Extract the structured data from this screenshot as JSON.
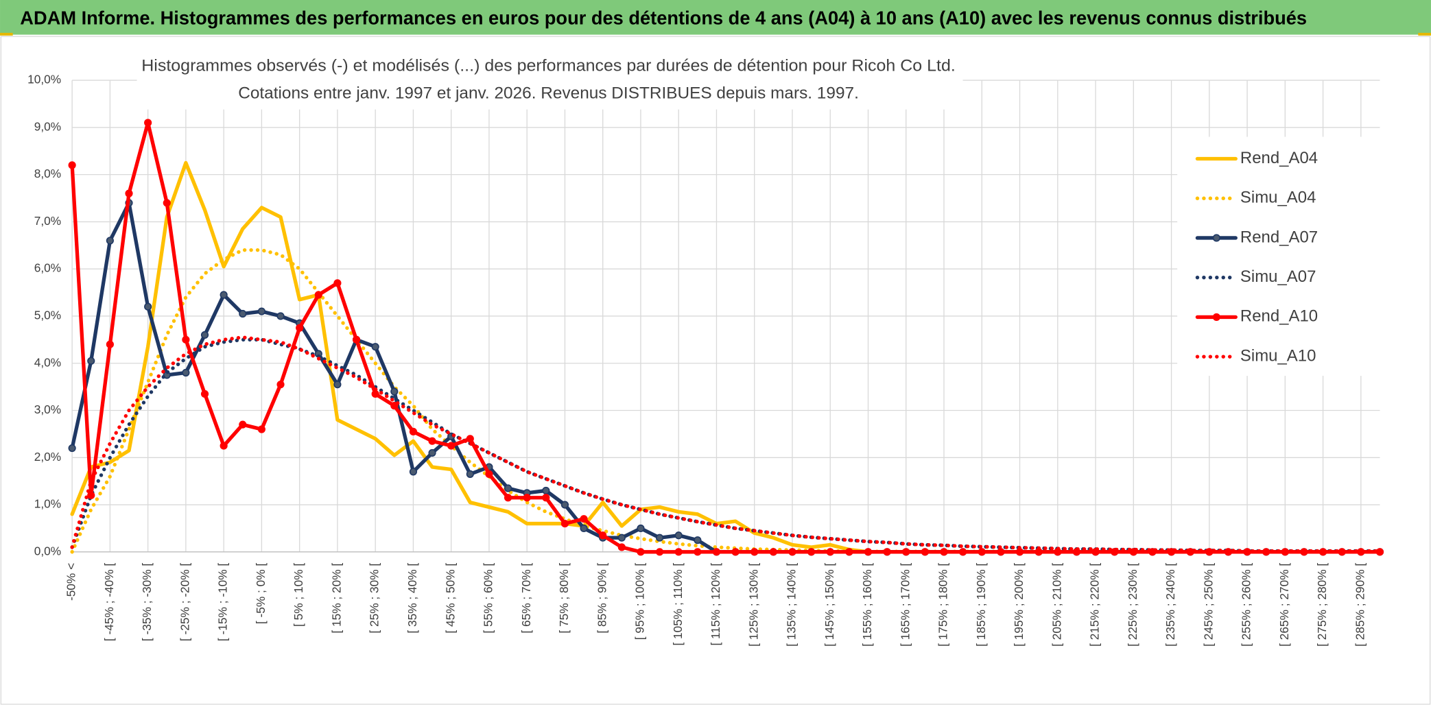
{
  "header": {
    "title": "ADAM Informe. Histogrammes des performances en euros pour des détentions de 4 ans (A04) à 10 ans (A10) avec les revenus connus distribués"
  },
  "chart_data": {
    "type": "line",
    "title": "Histogrammes observés (-) et modélisés (...) des performances par durées de détention pour Ricoh Co Ltd.",
    "subtitle": "Cotations entre janv. 1997 et janv. 2026. Revenus DISTRIBUES depuis mars. 1997.",
    "categories": [
      "-50% <",
      null,
      "[ -45% ; -40% [",
      null,
      "[ -35% ; -30% [",
      null,
      "[ -25% ; -20% [",
      null,
      "[ -15% ; -10% [",
      null,
      "[ -5% ; 0% [",
      null,
      "[ 5% ; 10% [",
      null,
      "[ 15% ; 20% [",
      null,
      "[ 25% ; 30% [",
      null,
      "[ 35% ; 40% [",
      null,
      "[ 45% ; 50% [",
      null,
      "[ 55% ; 60% [",
      null,
      "[ 65% ; 70% [",
      null,
      "[ 75% ; 80% [",
      null,
      "[ 85% ; 90% [",
      null,
      "[ 95% ; 100% [",
      null,
      "[ 105% ; 110% [",
      null,
      "[ 115% ; 120% [",
      null,
      "[ 125% ; 130% [",
      null,
      "[ 135% ; 140% [",
      null,
      "[ 145% ; 150% [",
      null,
      "[ 155% ; 160% [",
      null,
      "[ 165% ; 170% [",
      null,
      "[ 175% ; 180% [",
      null,
      "[ 185% ; 190% [",
      null,
      "[ 195% ; 200% [",
      null,
      "[ 205% ; 210% [",
      null,
      "[ 215% ; 220% [",
      null,
      "[ 225% ; 230% [",
      null,
      "[ 235% ; 240% [",
      null,
      "[ 245% ; 250% [",
      null,
      "[ 255% ; 260% [",
      null,
      "[ 265% ; 270% [",
      null,
      "[ 275% ; 280% [",
      null,
      "[ 285% ; 290% [",
      null
    ],
    "series": [
      {
        "name": "Rend_A04",
        "color": "#ffc000",
        "style": "solid",
        "markers": false,
        "values": [
          0.8,
          1.8,
          1.9,
          2.15,
          4.35,
          7.1,
          8.25,
          7.25,
          6.05,
          6.85,
          7.3,
          7.1,
          5.35,
          5.45,
          2.8,
          2.6,
          2.4,
          2.05,
          2.35,
          1.8,
          1.75,
          1.05,
          0.95,
          0.85,
          0.6,
          0.6,
          0.6,
          0.55,
          1.05,
          0.55,
          0.9,
          0.95,
          0.85,
          0.8,
          0.6,
          0.65,
          0.4,
          0.3,
          0.15,
          0.1,
          0.15,
          0.05,
          0,
          0,
          0,
          0,
          0,
          0,
          0,
          0,
          0,
          0,
          0,
          0,
          0,
          0,
          0,
          0,
          0,
          0,
          0,
          0,
          0,
          0,
          0,
          0,
          0,
          0,
          0,
          0
        ]
      },
      {
        "name": "Simu_A04",
        "color": "#ffc000",
        "style": "dotted",
        "markers": false,
        "values": [
          0,
          0.9,
          1.6,
          2.6,
          3.6,
          4.6,
          5.4,
          5.9,
          6.2,
          6.4,
          6.4,
          6.3,
          6.0,
          5.5,
          5.0,
          4.5,
          4.0,
          3.5,
          3.1,
          2.6,
          2.25,
          1.9,
          1.6,
          1.3,
          1.05,
          0.85,
          0.7,
          0.55,
          0.45,
          0.35,
          0.28,
          0.22,
          0.17,
          0.13,
          0.1,
          0.08,
          0.06,
          0.05,
          0.04,
          0.03,
          0.02,
          0.02,
          0.01,
          0.01,
          0.01,
          0.01,
          0.01,
          0.01,
          0.01,
          0.01,
          0,
          0,
          0,
          0,
          0,
          0,
          0,
          0,
          0,
          0,
          0,
          0,
          0,
          0,
          0,
          0,
          0,
          0,
          0,
          0
        ]
      },
      {
        "name": "Rend_A07",
        "color": "#1f3864",
        "style": "solid",
        "markers": true,
        "marker_color": "#4a5a70",
        "values": [
          2.2,
          4.05,
          6.6,
          7.4,
          5.2,
          3.75,
          3.8,
          4.6,
          5.45,
          5.05,
          5.1,
          5.0,
          4.85,
          4.2,
          3.55,
          4.5,
          4.35,
          3.4,
          1.7,
          2.1,
          2.45,
          1.65,
          1.8,
          1.35,
          1.25,
          1.3,
          1.0,
          0.5,
          0.3,
          0.3,
          0.5,
          0.3,
          0.35,
          0.25,
          0,
          0,
          0,
          0,
          0,
          0,
          0,
          0,
          0,
          0,
          0,
          0,
          0,
          0,
          0,
          0,
          0,
          0,
          0,
          0,
          0,
          0,
          0,
          0,
          0,
          0,
          0,
          0,
          0,
          0,
          0,
          0,
          0,
          0,
          0,
          0
        ]
      },
      {
        "name": "Simu_A07",
        "color": "#1f3864",
        "style": "dotted",
        "markers": false,
        "values": [
          0.1,
          1.2,
          2.0,
          2.7,
          3.3,
          3.8,
          4.1,
          4.35,
          4.45,
          4.5,
          4.5,
          4.4,
          4.3,
          4.15,
          3.95,
          3.75,
          3.5,
          3.25,
          3.0,
          2.75,
          2.5,
          2.3,
          2.1,
          1.9,
          1.7,
          1.55,
          1.4,
          1.25,
          1.12,
          1.0,
          0.9,
          0.8,
          0.72,
          0.64,
          0.57,
          0.5,
          0.45,
          0.4,
          0.35,
          0.31,
          0.28,
          0.25,
          0.22,
          0.2,
          0.17,
          0.15,
          0.14,
          0.12,
          0.11,
          0.1,
          0.09,
          0.08,
          0.07,
          0.06,
          0.06,
          0.05,
          0.05,
          0.04,
          0.04,
          0.03,
          0.03,
          0.03,
          0.02,
          0.02,
          0.02,
          0.02,
          0.02,
          0.02,
          0.02,
          0.02
        ]
      },
      {
        "name": "Rend_A10",
        "color": "#ff0000",
        "style": "solid",
        "markers": true,
        "marker_color": "#ff0000",
        "values": [
          8.2,
          1.2,
          4.4,
          7.6,
          9.1,
          7.4,
          4.5,
          3.35,
          2.25,
          2.7,
          2.6,
          3.55,
          4.75,
          5.45,
          5.7,
          4.5,
          3.35,
          3.1,
          2.55,
          2.35,
          2.25,
          2.4,
          1.65,
          1.15,
          1.15,
          1.15,
          0.6,
          0.7,
          0.35,
          0.1,
          0,
          0,
          0,
          0,
          0,
          0,
          0,
          0,
          0,
          0,
          0,
          0,
          0,
          0,
          0,
          0,
          0,
          0,
          0,
          0,
          0,
          0,
          0,
          0,
          0,
          0,
          0,
          0,
          0,
          0,
          0,
          0,
          0,
          0,
          0,
          0,
          0,
          0,
          0,
          0
        ]
      },
      {
        "name": "Simu_A10",
        "color": "#ff0000",
        "style": "dotted",
        "markers": false,
        "values": [
          0.1,
          1.5,
          2.3,
          3.0,
          3.5,
          3.9,
          4.2,
          4.4,
          4.5,
          4.55,
          4.5,
          4.45,
          4.3,
          4.1,
          3.9,
          3.7,
          3.45,
          3.2,
          2.95,
          2.7,
          2.5,
          2.3,
          2.1,
          1.9,
          1.7,
          1.55,
          1.4,
          1.25,
          1.12,
          1.0,
          0.9,
          0.8,
          0.72,
          0.64,
          0.57,
          0.5,
          0.45,
          0.4,
          0.35,
          0.31,
          0.28,
          0.25,
          0.22,
          0.2,
          0.17,
          0.15,
          0.14,
          0.12,
          0.11,
          0.1,
          0.09,
          0.08,
          0.07,
          0.06,
          0.06,
          0.05,
          0.05,
          0.04,
          0.04,
          0.03,
          0.03,
          0.03,
          0.02,
          0.02,
          0.02,
          0.02,
          0.02,
          0.02,
          0.02,
          0.02
        ]
      }
    ],
    "ylim": [
      0,
      10
    ],
    "yticks": [
      {
        "value": 0,
        "label": "0,0%"
      },
      {
        "value": 1,
        "label": "1,0%"
      },
      {
        "value": 2,
        "label": "2,0%"
      },
      {
        "value": 3,
        "label": "3,0%"
      },
      {
        "value": 4,
        "label": "4,0%"
      },
      {
        "value": 5,
        "label": "5,0%"
      },
      {
        "value": 6,
        "label": "6,0%"
      },
      {
        "value": 7,
        "label": "7,0%"
      },
      {
        "value": 8,
        "label": "8,0%"
      },
      {
        "value": 9,
        "label": "9,0%"
      },
      {
        "value": 10,
        "label": "10,0%"
      }
    ],
    "grid": true,
    "legend": "right"
  }
}
